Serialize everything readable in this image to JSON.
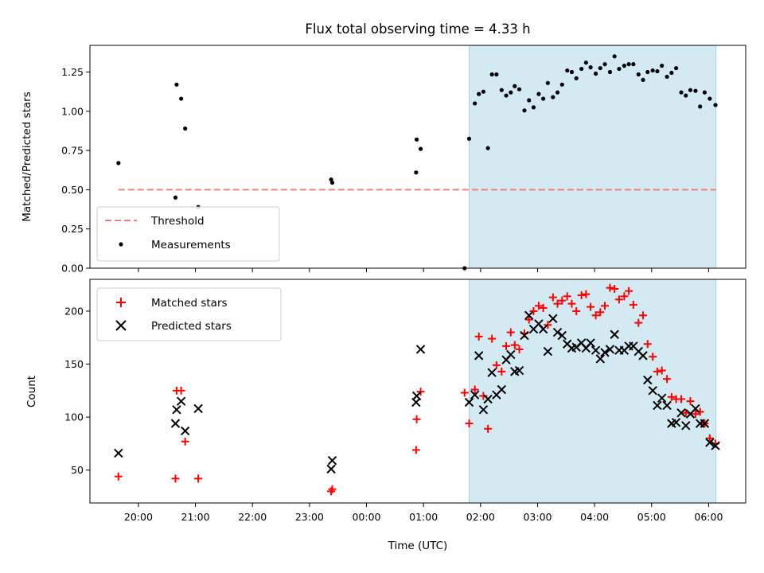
{
  "chart_data": [
    {
      "type": "scatter",
      "title": "Flux total observing time = 4.33 h",
      "ylabel": "Matched/Predicted stars",
      "xlabel": "",
      "ylim": [
        0,
        1.42
      ],
      "yticks": [
        0.0,
        0.25,
        0.5,
        0.75,
        1.0,
        1.25
      ],
      "ytick_labels": [
        "0.00",
        "0.25",
        "0.50",
        "0.75",
        "1.00",
        "1.25"
      ],
      "shaded_span_hours": [
        1.8,
        6.13
      ],
      "shaded_color": "#d3eaf2",
      "threshold": {
        "name": "Threshold",
        "value": 0.5,
        "x_range_hours": [
          -4.35,
          6.13
        ],
        "color": "#f08080"
      },
      "legend": {
        "placement": "lower-left",
        "entries": [
          "Threshold",
          "Measurements"
        ]
      },
      "series": [
        {
          "name": "Measurements",
          "marker": "dot",
          "color": "#000000",
          "x_hours": [
            -4.35,
            -3.35,
            -3.33,
            -3.25,
            -3.18,
            -2.95,
            -0.62,
            -0.6,
            0.87,
            0.88,
            0.95,
            1.72,
            1.8,
            1.9,
            1.97,
            2.05,
            2.13,
            2.2,
            2.28,
            2.37,
            2.45,
            2.53,
            2.6,
            2.68,
            2.77,
            2.85,
            2.93,
            3.02,
            3.1,
            3.18,
            3.27,
            3.35,
            3.43,
            3.52,
            3.6,
            3.68,
            3.77,
            3.85,
            3.93,
            4.02,
            4.1,
            4.18,
            4.27,
            4.35,
            4.43,
            4.52,
            4.6,
            4.68,
            4.77,
            4.85,
            4.93,
            5.02,
            5.1,
            5.18,
            5.27,
            5.35,
            5.43,
            5.52,
            5.6,
            5.68,
            5.77,
            5.85,
            5.93,
            6.02,
            6.12
          ],
          "y": [
            0.67,
            0.45,
            1.17,
            1.08,
            0.89,
            0.39,
            0.565,
            0.545,
            0.61,
            0.82,
            0.76,
            0.0,
            0.825,
            1.05,
            1.11,
            1.125,
            0.765,
            1.235,
            1.235,
            1.135,
            1.1,
            1.12,
            1.16,
            1.14,
            1.005,
            1.07,
            1.025,
            1.11,
            1.08,
            1.18,
            1.09,
            1.12,
            1.17,
            1.26,
            1.25,
            1.21,
            1.27,
            1.31,
            1.28,
            1.24,
            1.275,
            1.3,
            1.25,
            1.35,
            1.27,
            1.29,
            1.3,
            1.3,
            1.235,
            1.2,
            1.25,
            1.26,
            1.255,
            1.29,
            1.22,
            1.245,
            1.275,
            1.12,
            1.1,
            1.135,
            1.13,
            1.03,
            1.12,
            1.08,
            1.04
          ]
        }
      ]
    },
    {
      "type": "scatter",
      "ylabel": "Count",
      "xlabel": "Time (UTC)",
      "ylim": [
        19,
        230
      ],
      "yticks": [
        50,
        100,
        150,
        200
      ],
      "ytick_labels": [
        "50",
        "100",
        "150",
        "200"
      ],
      "xlim_hours": [
        -4.85,
        6.65
      ],
      "xticks_hours": [
        -4,
        -3,
        -2,
        -1,
        0,
        1,
        2,
        3,
        4,
        5,
        6
      ],
      "xtick_labels": [
        "20:00",
        "21:00",
        "22:00",
        "23:00",
        "00:00",
        "01:00",
        "02:00",
        "03:00",
        "04:00",
        "05:00",
        "06:00"
      ],
      "shaded_span_hours": [
        1.8,
        6.13
      ],
      "shaded_color": "#d3eaf2",
      "legend": {
        "placement": "upper-left",
        "entries": [
          "Matched stars",
          "Predicted stars"
        ]
      },
      "series": [
        {
          "name": "Matched stars",
          "marker": "plus",
          "color": "#ff0000",
          "x_hours": [
            -4.35,
            -3.35,
            -3.33,
            -3.25,
            -3.18,
            -2.95,
            -0.62,
            -0.6,
            0.87,
            0.88,
            0.95,
            1.72,
            1.8,
            1.9,
            1.97,
            2.05,
            2.13,
            2.2,
            2.28,
            2.37,
            2.45,
            2.53,
            2.6,
            2.68,
            2.77,
            2.85,
            2.93,
            3.02,
            3.1,
            3.18,
            3.27,
            3.35,
            3.43,
            3.52,
            3.6,
            3.68,
            3.77,
            3.85,
            3.93,
            4.02,
            4.1,
            4.18,
            4.27,
            4.35,
            4.43,
            4.52,
            4.6,
            4.68,
            4.77,
            4.85,
            4.93,
            5.02,
            5.1,
            5.18,
            5.27,
            5.35,
            5.43,
            5.52,
            5.6,
            5.68,
            5.77,
            5.85,
            5.93,
            6.02,
            6.12
          ],
          "y": [
            44,
            42,
            125,
            125,
            77,
            42,
            30,
            32,
            69,
            98,
            124,
            123,
            94,
            126,
            176,
            120,
            89,
            174,
            149,
            143,
            167,
            180,
            168,
            164,
            179,
            192,
            200,
            205,
            203,
            187,
            213,
            207,
            210,
            214,
            207,
            200,
            215,
            216,
            204,
            196,
            199,
            205,
            222,
            221,
            211,
            214,
            219,
            206,
            189,
            196,
            169,
            157,
            143,
            144,
            136,
            119,
            117,
            117,
            104,
            115,
            103,
            105,
            94,
            80,
            75
          ]
        },
        {
          "name": "Predicted stars",
          "marker": "x",
          "color": "#000000",
          "x_hours": [
            -4.35,
            -3.35,
            -3.33,
            -3.25,
            -3.18,
            -2.95,
            -0.62,
            -0.6,
            0.87,
            0.88,
            0.95,
            1.8,
            1.9,
            1.97,
            2.05,
            2.13,
            2.2,
            2.28,
            2.37,
            2.45,
            2.53,
            2.6,
            2.68,
            2.77,
            2.85,
            2.93,
            3.02,
            3.1,
            3.18,
            3.27,
            3.35,
            3.43,
            3.52,
            3.6,
            3.68,
            3.77,
            3.85,
            3.93,
            4.02,
            4.1,
            4.18,
            4.27,
            4.35,
            4.43,
            4.52,
            4.6,
            4.68,
            4.77,
            4.85,
            4.93,
            5.02,
            5.1,
            5.18,
            5.27,
            5.35,
            5.43,
            5.52,
            5.6,
            5.68,
            5.77,
            5.85,
            5.93,
            6.02,
            6.12
          ],
          "y": [
            66,
            94,
            107,
            115,
            87,
            108,
            51,
            59,
            114,
            120,
            164,
            114,
            121,
            158,
            107,
            117,
            142,
            121,
            126,
            154,
            159,
            143,
            144,
            177,
            196,
            183,
            188,
            183,
            162,
            193,
            180,
            177,
            169,
            165,
            166,
            170,
            165,
            170,
            163,
            155,
            161,
            164,
            178,
            163,
            163,
            167,
            167,
            162,
            158,
            135,
            125,
            111,
            118,
            111,
            94,
            95,
            104,
            92,
            103,
            108,
            94,
            94,
            76,
            73
          ]
        }
      ]
    }
  ]
}
